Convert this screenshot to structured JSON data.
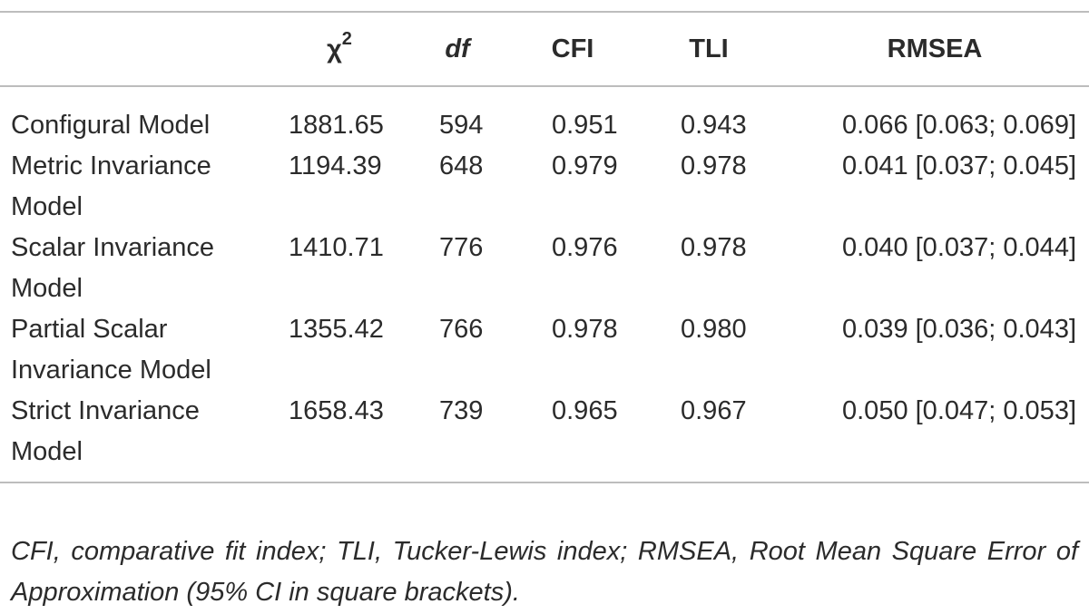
{
  "table": {
    "headers": {
      "model": "",
      "chi_symbol": "χ",
      "chi_power": "2",
      "df": "df",
      "cfi": "CFI",
      "tli": "TLI",
      "rmsea": "RMSEA"
    },
    "rows": [
      {
        "model": "Configural Model",
        "chi2": "1881.65",
        "df": "594",
        "cfi": "0.951",
        "tli": "0.943",
        "rmsea": "0.066 [0.063; 0.069]"
      },
      {
        "model": "Metric Invariance Model",
        "chi2": "1194.39",
        "df": "648",
        "cfi": "0.979",
        "tli": "0.978",
        "rmsea": "0.041 [0.037; 0.045]"
      },
      {
        "model": "Scalar Invariance Model",
        "chi2": "1410.71",
        "df": "776",
        "cfi": "0.976",
        "tli": "0.978",
        "rmsea": "0.040 [0.037; 0.044]"
      },
      {
        "model": "Partial Scalar Invariance Model",
        "chi2": "1355.42",
        "df": "766",
        "cfi": "0.978",
        "tli": "0.980",
        "rmsea": "0.039 [0.036; 0.043]"
      },
      {
        "model": "Strict Invariance Model",
        "chi2": "1658.43",
        "df": "739",
        "cfi": "0.965",
        "tli": "0.967",
        "rmsea": "0.050 [0.047; 0.053]"
      }
    ]
  },
  "footnote": "CFI, comparative fit index; TLI, Tucker-Lewis index; RMSEA, Root Mean Square Error of Approximation (95% CI in square brackets)."
}
